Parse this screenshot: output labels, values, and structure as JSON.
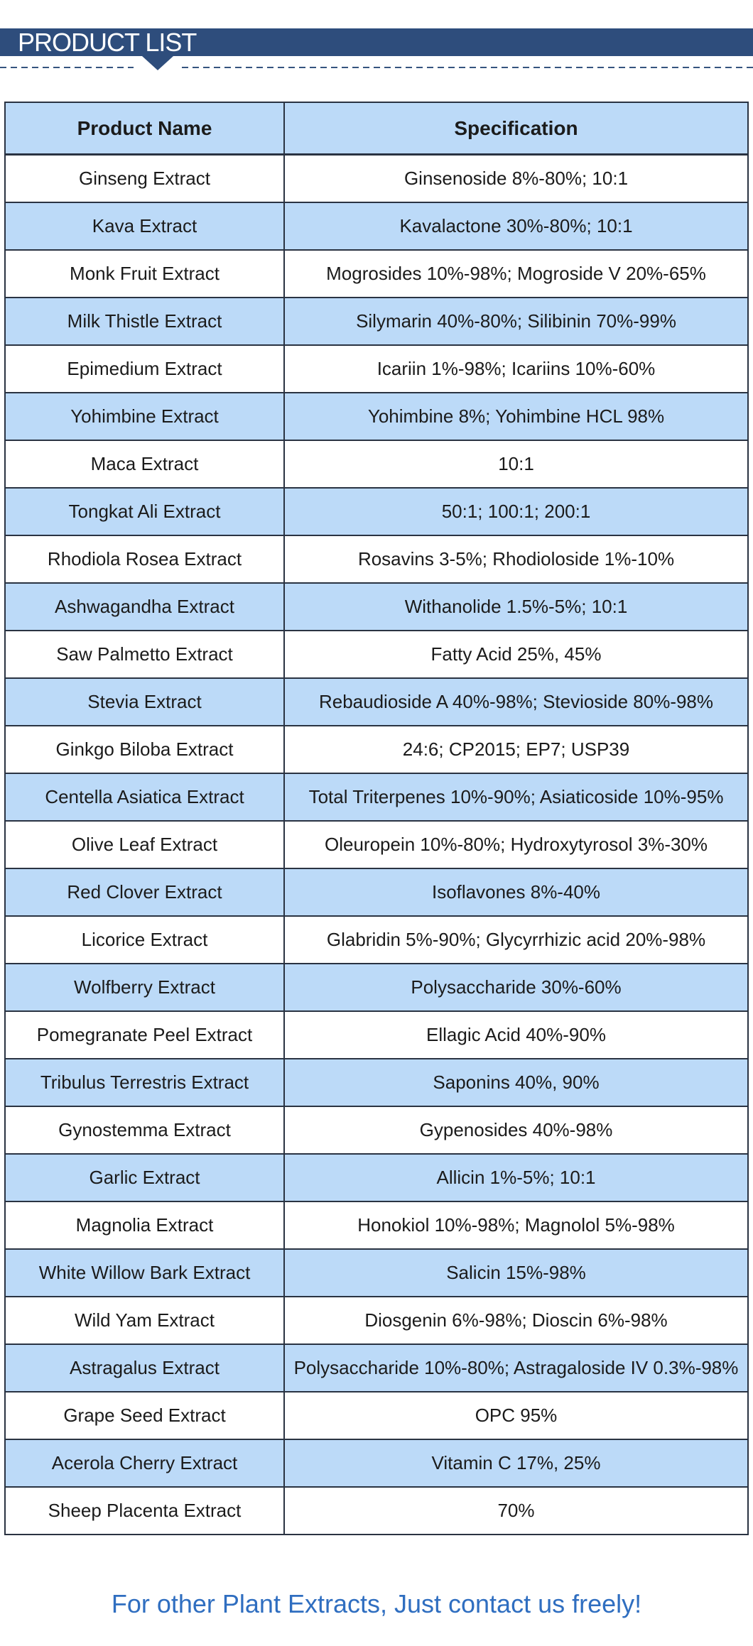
{
  "banner": {
    "title": "PRODUCT LIST"
  },
  "divider": {
    "pointer_icon": "triangle-down"
  },
  "colors": {
    "banner_bg": "#2e4d7c",
    "row_alt_bg": "#bcdaf8",
    "table_border": "#2a3342",
    "dash_line": "#35547f",
    "footer_text": "#2f6ec0",
    "cell_text": "#1b1b1b"
  },
  "table": {
    "columns": [
      "Product Name",
      "Specification"
    ],
    "rows": [
      {
        "name": "Ginseng Extract",
        "spec": "Ginsenoside 8%-80%; 10:1"
      },
      {
        "name": "Kava Extract",
        "spec": "Kavalactone 30%-80%; 10:1"
      },
      {
        "name": "Monk Fruit Extract",
        "spec": "Mogrosides 10%-98%; Mogroside V 20%-65%"
      },
      {
        "name": "Milk Thistle Extract",
        "spec": "Silymarin 40%-80%; Silibinin 70%-99%"
      },
      {
        "name": "Epimedium Extract",
        "spec": "Icariin 1%-98%; Icariins 10%-60%"
      },
      {
        "name": "Yohimbine Extract",
        "spec": "Yohimbine 8%; Yohimbine HCL 98%"
      },
      {
        "name": "Maca Extract",
        "spec": "10:1"
      },
      {
        "name": "Tongkat Ali Extract",
        "spec": "50:1; 100:1; 200:1"
      },
      {
        "name": "Rhodiola Rosea Extract",
        "spec": "Rosavins 3-5%; Rhodioloside 1%-10%"
      },
      {
        "name": "Ashwagandha Extract",
        "spec": "Withanolide 1.5%-5%; 10:1"
      },
      {
        "name": "Saw Palmetto Extract",
        "spec": "Fatty Acid 25%, 45%"
      },
      {
        "name": "Stevia Extract",
        "spec": "Rebaudioside A 40%-98%; Stevioside 80%-98%"
      },
      {
        "name": "Ginkgo Biloba Extract",
        "spec": "24:6; CP2015; EP7; USP39"
      },
      {
        "name": "Centella Asiatica Extract",
        "spec": "Total Triterpenes 10%-90%; Asiaticoside 10%-95%"
      },
      {
        "name": "Olive Leaf Extract",
        "spec": "Oleuropein 10%-80%; Hydroxytyrosol 3%-30%"
      },
      {
        "name": "Red Clover Extract",
        "spec": "Isoflavones 8%-40%"
      },
      {
        "name": "Licorice Extract",
        "spec": "Glabridin 5%-90%; Glycyrrhizic acid 20%-98%"
      },
      {
        "name": "Wolfberry Extract",
        "spec": "Polysaccharide 30%-60%"
      },
      {
        "name": "Pomegranate Peel Extract",
        "spec": "Ellagic Acid 40%-90%"
      },
      {
        "name": "Tribulus Terrestris Extract",
        "spec": "Saponins 40%, 90%"
      },
      {
        "name": "Gynostemma Extract",
        "spec": "Gypenosides 40%-98%"
      },
      {
        "name": "Garlic Extract",
        "spec": "Allicin 1%-5%; 10:1"
      },
      {
        "name": "Magnolia Extract",
        "spec": "Honokiol 10%-98%; Magnolol 5%-98%"
      },
      {
        "name": "White Willow Bark Extract",
        "spec": "Salicin 15%-98%"
      },
      {
        "name": "Wild Yam Extract",
        "spec": "Diosgenin 6%-98%; Dioscin 6%-98%"
      },
      {
        "name": "Astragalus Extract",
        "spec": "Polysaccharide 10%-80%; Astragaloside IV 0.3%-98%"
      },
      {
        "name": "Grape Seed Extract",
        "spec": "OPC 95%"
      },
      {
        "name": "Acerola Cherry Extract",
        "spec": "Vitamin C 17%, 25%"
      },
      {
        "name": "Sheep Placenta Extract",
        "spec": "70%"
      }
    ]
  },
  "footer": {
    "text": "For other Plant Extracts, Just contact us freely!"
  }
}
